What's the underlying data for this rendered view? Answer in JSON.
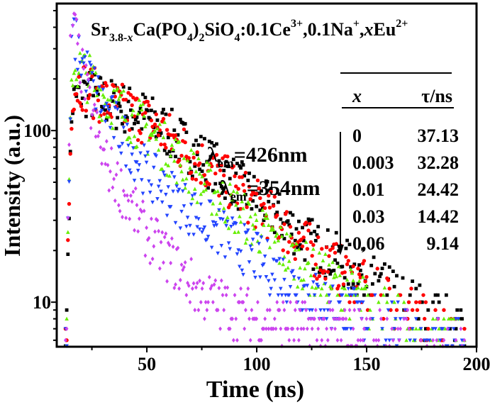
{
  "chart_data": {
    "type": "scatter",
    "title_parts": [
      {
        "t": "Sr",
        "s": "n"
      },
      {
        "t": "3.8-",
        "s": "sub"
      },
      {
        "t": "x",
        "s": "subi"
      },
      {
        "t": "Ca(PO",
        "s": "n"
      },
      {
        "t": "4",
        "s": "sub"
      },
      {
        "t": ")",
        "s": "n"
      },
      {
        "t": "2",
        "s": "sub"
      },
      {
        "t": "SiO",
        "s": "n"
      },
      {
        "t": "4",
        "s": "sub"
      },
      {
        "t": ":0.1Ce",
        "s": "n"
      },
      {
        "t": "3+",
        "s": "sup"
      },
      {
        "t": ",0.1Na",
        "s": "n"
      },
      {
        "t": "+",
        "s": "sup"
      },
      {
        "t": ",",
        "s": "n"
      },
      {
        "t": "x",
        "s": "i"
      },
      {
        "t": "Eu",
        "s": "n"
      },
      {
        "t": "2+",
        "s": "sup"
      }
    ],
    "xlabel": "Time (ns)",
    "ylabel": "Intensity (a.u.)",
    "xlim": [
      9,
      200
    ],
    "ylim": [
      5.5,
      550
    ],
    "yscale": "log",
    "xticks": [
      50,
      100,
      150,
      200
    ],
    "yticks": [
      10,
      100
    ],
    "grid": false,
    "annotations": [
      {
        "symbol": "λ",
        "sub": "em",
        "text": "=426nm"
      },
      {
        "symbol": "λ",
        "sub": "em",
        "text": "=354nm"
      }
    ],
    "table": {
      "headers": [
        "x",
        "τ/ns"
      ],
      "rows": [
        [
          "0",
          "37.13"
        ],
        [
          "0.003",
          "32.28"
        ],
        [
          "0.01",
          "24.42"
        ],
        [
          "0.03",
          "14.42"
        ],
        [
          "0,06",
          "9.14"
        ]
      ]
    },
    "series": [
      {
        "x_value": "0",
        "color": "#000000",
        "marker": "square",
        "points": [
          [
            14,
            20
          ],
          [
            16,
            140
          ],
          [
            20,
            170
          ],
          [
            30,
            150
          ],
          [
            50,
            120
          ],
          [
            75,
            70
          ],
          [
            100,
            40
          ],
          [
            125,
            22
          ],
          [
            150,
            14
          ],
          [
            175,
            9
          ],
          [
            195,
            7
          ]
        ]
      },
      {
        "x_value": "0.003",
        "color": "#ff0000",
        "marker": "circle",
        "points": [
          [
            14,
            20
          ],
          [
            16,
            175
          ],
          [
            20,
            190
          ],
          [
            30,
            150
          ],
          [
            50,
            115
          ],
          [
            75,
            65
          ],
          [
            100,
            37
          ],
          [
            125,
            20
          ],
          [
            150,
            12
          ],
          [
            175,
            8
          ],
          [
            195,
            6.5
          ]
        ]
      },
      {
        "x_value": "0.01",
        "color": "#66ee00",
        "marker": "triangle-up",
        "points": [
          [
            14,
            20
          ],
          [
            16,
            235
          ],
          [
            20,
            230
          ],
          [
            30,
            160
          ],
          [
            50,
            100
          ],
          [
            75,
            50
          ],
          [
            100,
            27
          ],
          [
            125,
            15
          ],
          [
            150,
            10
          ],
          [
            175,
            7
          ],
          [
            195,
            6
          ]
        ]
      },
      {
        "x_value": "0.03",
        "color": "#2244ff",
        "marker": "triangle-down",
        "points": [
          [
            14,
            20
          ],
          [
            16,
            380
          ],
          [
            20,
            260
          ],
          [
            30,
            140
          ],
          [
            50,
            56
          ],
          [
            75,
            30
          ],
          [
            100,
            18
          ],
          [
            125,
            11
          ],
          [
            150,
            8
          ],
          [
            175,
            6.5
          ],
          [
            195,
            6
          ]
        ]
      },
      {
        "x_value": "0.06",
        "color": "#cc44ee",
        "marker": "diamond",
        "points": [
          [
            14,
            20
          ],
          [
            15.5,
            520
          ],
          [
            20,
            230
          ],
          [
            30,
            70
          ],
          [
            50,
            25
          ],
          [
            75,
            11
          ],
          [
            100,
            8
          ],
          [
            125,
            7
          ],
          [
            150,
            6.5
          ],
          [
            175,
            6
          ],
          [
            195,
            6
          ]
        ]
      }
    ]
  }
}
